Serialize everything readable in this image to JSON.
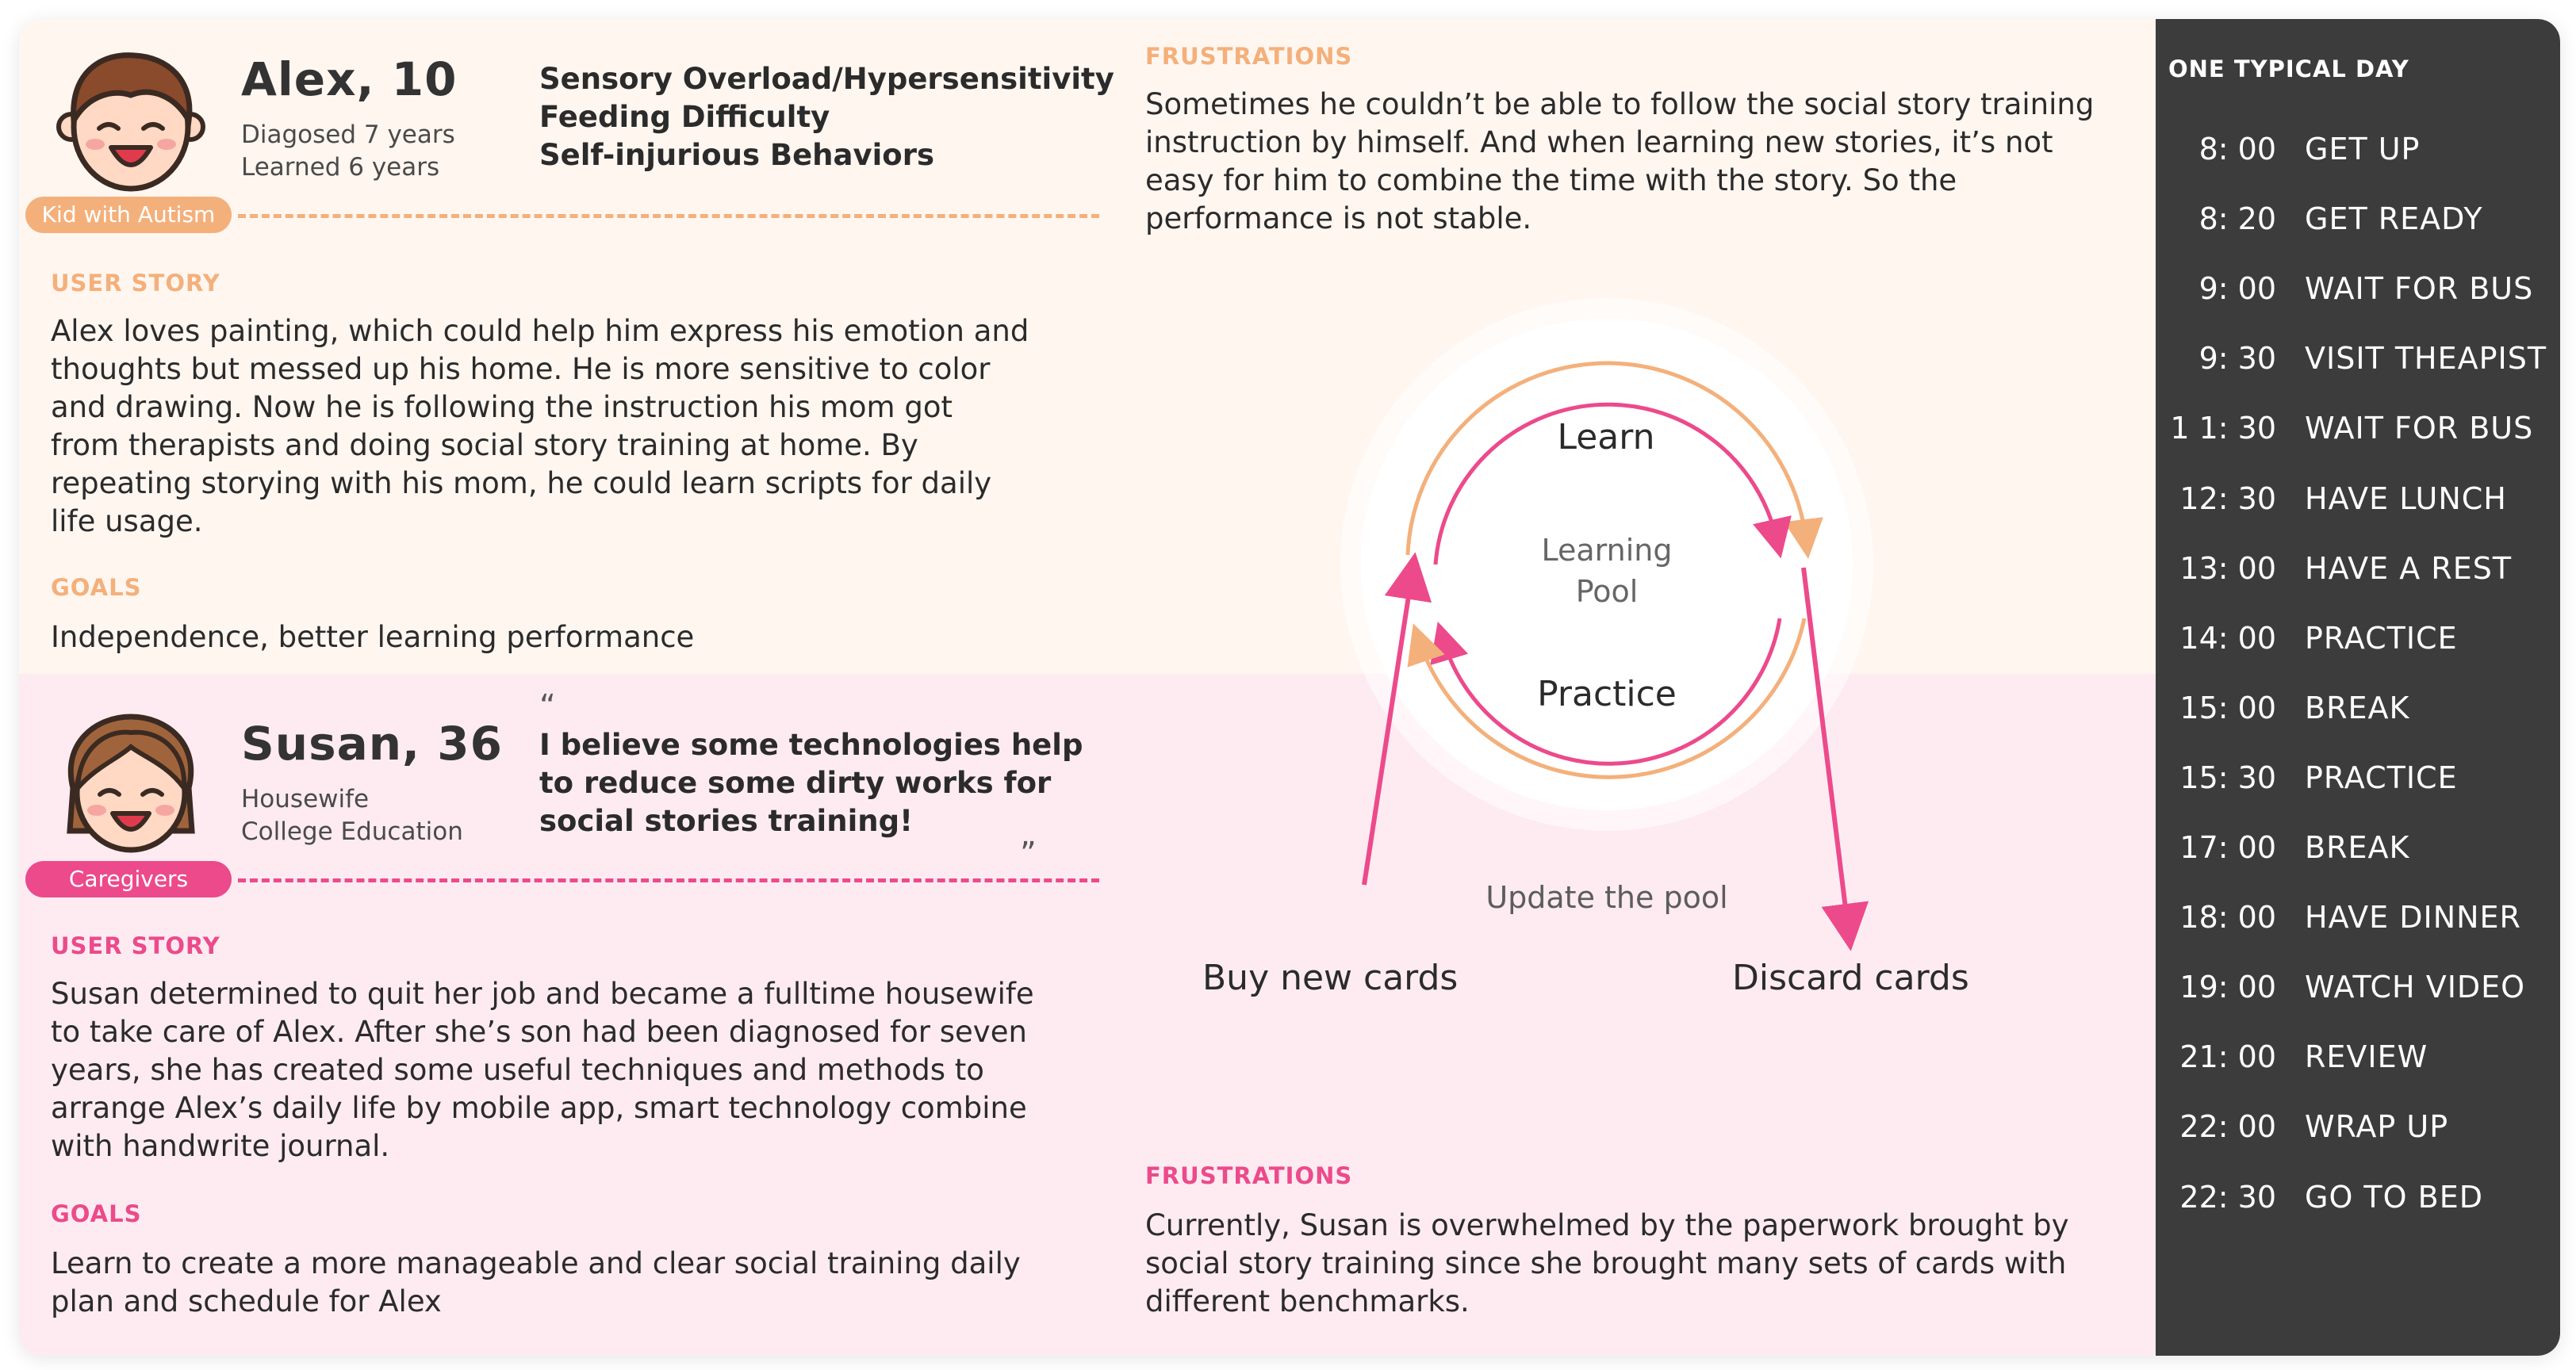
{
  "kid": {
    "name": "Alex, 10",
    "meta": [
      "Diagosed 7 years",
      "Learned 6 years"
    ],
    "tag": "Kid with Autism",
    "conditions": [
      "Sensory Overload/Hypersensitivity",
      "Feeding Difficulty",
      "Self-injurious Behaviors"
    ],
    "user_story_label": "USER STORY",
    "user_story_lines": [
      "Alex loves painting, which could help him express his emotion and",
      "thoughts but messed up his home. He is more sensitive to color",
      "and drawing. Now he is following the instruction his mom got",
      "from therapists and doing social story training at home. By",
      "repeating storying with his mom, he could learn scripts for daily",
      "life usage."
    ],
    "goals_label": "GOALS",
    "goals": "Independence, better learning performance",
    "frustrations_label": "FRUSTRATIONS",
    "frustrations_lines": [
      "Sometimes he couldn’t be able to follow the social story training",
      "instruction by himself. And when learning new stories, it’s not",
      "easy for him to combine the time with the story. So the",
      "performance is not stable."
    ]
  },
  "caregiver": {
    "name": "Susan, 36",
    "meta": [
      "Housewife",
      "College Education"
    ],
    "tag": "Caregivers",
    "quote_open": "“",
    "quote_lines": [
      "I believe some technologies help",
      "to reduce some dirty works for",
      "social stories training!"
    ],
    "quote_close": "”",
    "user_story_label": "USER STORY",
    "user_story_lines": [
      "Susan determined to quit her job and became a fulltime housewife",
      "to take care of Alex. After she’s son had been diagnosed for seven",
      "years, she has created some useful techniques and methods to",
      "arrange Alex’s daily life by mobile app, smart technology combine",
      "with handwrite journal."
    ],
    "goals_label": "GOALS",
    "goals_lines": [
      "Learn to create a more manageable and clear social training daily",
      "plan and schedule for Alex"
    ],
    "frustrations_label": "FRUSTRATIONS",
    "frustrations_lines": [
      "Currently, Susan is overwhelmed by the paperwork brought by",
      "social story training since she brought many sets of cards with",
      "different benchmarks."
    ]
  },
  "diagram": {
    "learn": "Learn",
    "practice": "Practice",
    "pool_lines": [
      "Learning",
      "Pool"
    ],
    "update": "Update the pool",
    "buy": "Buy new cards",
    "discard": "Discard cards"
  },
  "day": {
    "title": "ONE TYPICAL DAY",
    "rows": [
      {
        "time": "8: 00",
        "activity": "GET UP"
      },
      {
        "time": "8: 20",
        "activity": "GET READY"
      },
      {
        "time": "9: 00",
        "activity": "WAIT FOR BUS"
      },
      {
        "time": "9: 30",
        "activity": "VISIT THEAPIST"
      },
      {
        "time": "1 1: 30",
        "activity": "WAIT FOR BUS"
      },
      {
        "time": "12: 30",
        "activity": "HAVE LUNCH"
      },
      {
        "time": "13: 00",
        "activity": "HAVE A REST"
      },
      {
        "time": "14: 00",
        "activity": "PRACTICE"
      },
      {
        "time": "15: 00",
        "activity": "BREAK"
      },
      {
        "time": "15: 30",
        "activity": "PRACTICE"
      },
      {
        "time": "17: 00",
        "activity": "BREAK"
      },
      {
        "time": "18: 00",
        "activity": "HAVE DINNER"
      },
      {
        "time": "19: 00",
        "activity": "WATCH VIDEO"
      },
      {
        "time": "21: 00",
        "activity": "REVIEW"
      },
      {
        "time": "22: 00",
        "activity": "WRAP UP"
      },
      {
        "time": "22: 30",
        "activity": "GO TO BED"
      }
    ]
  },
  "colors": {
    "orange": "#f4b07b",
    "pink": "#ec4a8b",
    "kid_bg": "#fff6f0",
    "caregiver_bg": "#feebf2",
    "day_bg": "#3c3c3c"
  },
  "icons": [
    "boy-avatar-icon",
    "girl-avatar-icon"
  ]
}
